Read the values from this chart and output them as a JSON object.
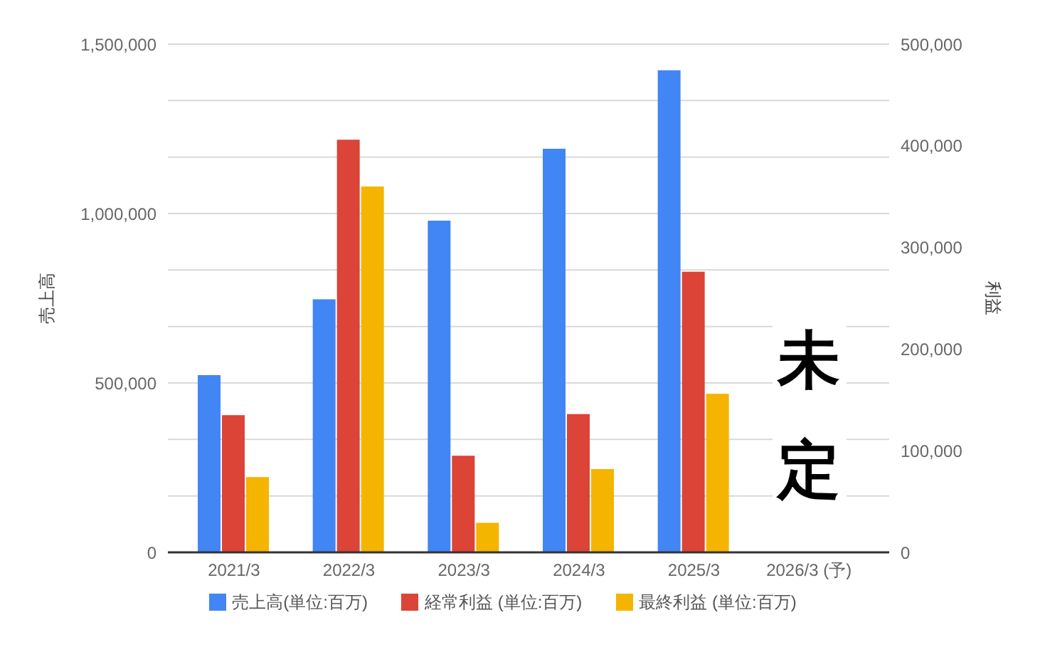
{
  "chart_data": {
    "type": "bar",
    "categories": [
      "2021/3",
      "2022/3",
      "2023/3",
      "2024/3",
      "2025/3",
      "2026/3 (予)"
    ],
    "series": [
      {
        "name": "売上高(単位:百万)",
        "color": "#4285f4",
        "values": [
          523000,
          747000,
          979000,
          1191000,
          1423000,
          0
        ]
      },
      {
        "name": "経常利益 (単位:百万)",
        "color": "#db4437",
        "axis": "y2",
        "values": [
          135000,
          406000,
          95000,
          136000,
          276000,
          null
        ]
      },
      {
        "name": "最終利益 (単位:百万)",
        "color": "#f4b400",
        "axis": "y2",
        "values": [
          74000,
          360000,
          29000,
          82000,
          156000,
          null
        ]
      }
    ],
    "ylabel": "売上高",
    "y2label": "利益",
    "ylim": [
      0,
      1500000
    ],
    "yticks": [
      0,
      {
        "value": 166667,
        "label": null
      },
      {
        "value": 333333,
        "label": null
      },
      {
        "value": 500000,
        "label": "500,000"
      },
      {
        "value": 666667,
        "label": null
      },
      {
        "value": 833333,
        "label": null
      },
      {
        "value": 1000000,
        "label": "1,000,000"
      },
      {
        "value": 1166667,
        "label": null
      },
      {
        "value": 1333333,
        "label": null
      },
      {
        "value": 1500000,
        "label": "1,500,000"
      }
    ],
    "y2lim": [
      0,
      500000
    ],
    "y2ticks": [
      0,
      {
        "value": 100000,
        "label": "100,000"
      },
      {
        "value": 200000,
        "label": "200,000"
      },
      {
        "value": 300000,
        "label": "300,000"
      },
      {
        "value": 400000,
        "label": "400,000"
      },
      {
        "value": 500000,
        "label": "500,000"
      }
    ],
    "grid": "y",
    "legend": "bottom",
    "annotations": [
      "未定"
    ]
  }
}
